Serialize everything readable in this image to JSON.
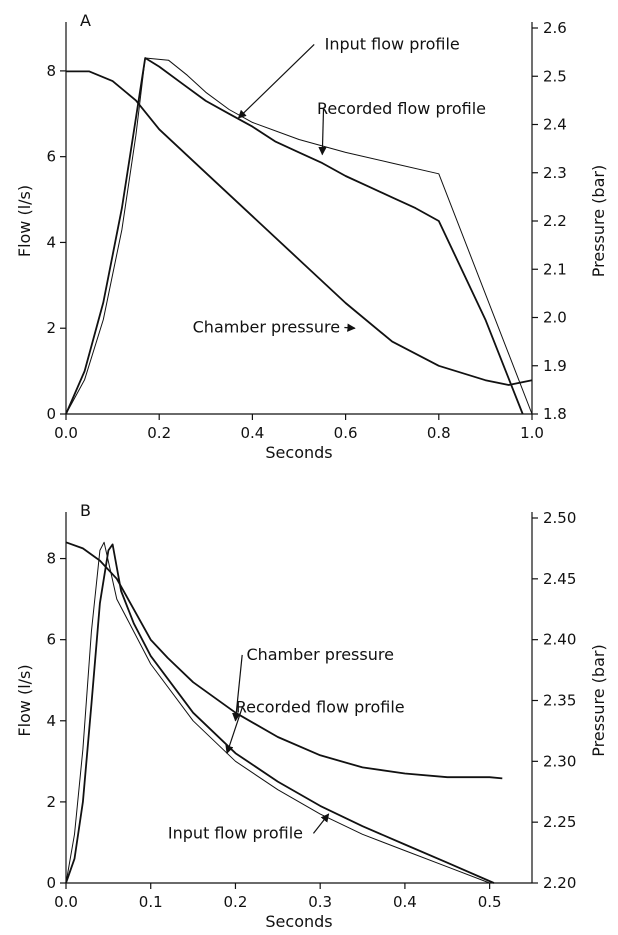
{
  "chart_data": [
    {
      "panel": "A",
      "type": "line",
      "xlabel": "Seconds",
      "ylabel": "Flow (l/s)",
      "y2label": "Pressure (bar)",
      "xlim": [
        0.0,
        1.0
      ],
      "ylim": [
        0,
        9
      ],
      "y2lim": [
        1.8,
        2.6
      ],
      "xticks": [
        "0.0",
        "0.2",
        "0.4",
        "0.6",
        "0.8",
        "1.0"
      ],
      "yticks": [
        "0",
        "2",
        "4",
        "6",
        "8"
      ],
      "y2ticks": [
        "1.8",
        "1.9",
        "2.0",
        "2.1",
        "2.2",
        "2.3",
        "2.4",
        "2.5",
        "2.6"
      ],
      "series": [
        {
          "name": "Input flow profile",
          "axis": "left",
          "stroke": 1.0,
          "x": [
            0.0,
            0.04,
            0.08,
            0.12,
            0.15,
            0.17,
            0.22,
            0.26,
            0.3,
            0.35,
            0.4,
            0.5,
            0.6,
            0.7,
            0.8,
            1.0
          ],
          "y": [
            0.0,
            0.8,
            2.2,
            4.3,
            6.5,
            8.3,
            8.25,
            7.9,
            7.5,
            7.1,
            6.8,
            6.4,
            6.1,
            5.85,
            5.6,
            0.0
          ]
        },
        {
          "name": "Recorded flow profile",
          "axis": "left",
          "stroke": 1.8,
          "x": [
            0.0,
            0.04,
            0.08,
            0.12,
            0.15,
            0.17,
            0.2,
            0.25,
            0.3,
            0.35,
            0.4,
            0.45,
            0.5,
            0.55,
            0.6,
            0.65,
            0.7,
            0.75,
            0.8,
            0.9,
            0.98
          ],
          "y": [
            0.0,
            1.0,
            2.6,
            4.8,
            6.9,
            8.3,
            8.1,
            7.7,
            7.3,
            7.0,
            6.7,
            6.35,
            6.1,
            5.85,
            5.55,
            5.3,
            5.05,
            4.8,
            4.5,
            2.2,
            0.0
          ]
        },
        {
          "name": "Chamber pressure",
          "axis": "right",
          "stroke": 1.8,
          "x": [
            0.0,
            0.05,
            0.1,
            0.15,
            0.2,
            0.3,
            0.4,
            0.5,
            0.6,
            0.7,
            0.8,
            0.9,
            0.95,
            1.0
          ],
          "y": [
            2.51,
            2.51,
            2.49,
            2.45,
            2.39,
            2.3,
            2.21,
            2.12,
            2.03,
            1.95,
            1.9,
            1.87,
            1.86,
            1.87
          ]
        }
      ],
      "annotations": [
        {
          "text": "Input flow profile",
          "series": "Input flow profile",
          "tx": 0.7,
          "ty": 8.5,
          "ax": 0.37,
          "ay": 6.9
        },
        {
          "text": "Recorded flow profile",
          "series": "Recorded flow profile",
          "tx": 0.72,
          "ty": 7.0,
          "ax": 0.55,
          "ay": 6.05
        },
        {
          "text": "Chamber pressure",
          "series": "Chamber pressure",
          "tx": 0.43,
          "ty": 1.9,
          "ax": 0.62,
          "ay": 2.0
        }
      ]
    },
    {
      "panel": "B",
      "type": "line",
      "xlabel": "Seconds",
      "ylabel": "Flow (l/s)",
      "y2label": "Pressure (bar)",
      "xlim": [
        0.0,
        0.55
      ],
      "ylim": [
        0,
        9
      ],
      "y2lim": [
        2.2,
        2.5
      ],
      "xticks": [
        "0.0",
        "0.1",
        "0.2",
        "0.3",
        "0.4",
        "0.5"
      ],
      "yticks": [
        "0",
        "2",
        "4",
        "6",
        "8"
      ],
      "y2ticks": [
        "2.20",
        "2.25",
        "2.30",
        "2.35",
        "2.40",
        "2.45",
        "2.50"
      ],
      "series": [
        {
          "name": "Input flow profile",
          "axis": "left",
          "stroke": 1.0,
          "x": [
            0.0,
            0.01,
            0.02,
            0.03,
            0.04,
            0.045,
            0.06,
            0.08,
            0.1,
            0.15,
            0.2,
            0.25,
            0.3,
            0.35,
            0.4,
            0.45,
            0.5
          ],
          "y": [
            0.0,
            1.2,
            3.3,
            6.2,
            8.2,
            8.4,
            7.0,
            6.2,
            5.4,
            4.0,
            3.0,
            2.3,
            1.7,
            1.2,
            0.8,
            0.4,
            0.0
          ]
        },
        {
          "name": "Recorded flow profile",
          "axis": "left",
          "stroke": 1.8,
          "x": [
            0.0,
            0.01,
            0.02,
            0.03,
            0.04,
            0.05,
            0.055,
            0.065,
            0.08,
            0.1,
            0.15,
            0.2,
            0.25,
            0.3,
            0.35,
            0.4,
            0.45,
            0.505
          ],
          "y": [
            0.0,
            0.6,
            2.0,
            4.4,
            6.9,
            8.2,
            8.35,
            7.2,
            6.4,
            5.6,
            4.2,
            3.2,
            2.5,
            1.9,
            1.4,
            0.95,
            0.5,
            0.0
          ]
        },
        {
          "name": "Chamber pressure",
          "axis": "right",
          "stroke": 1.8,
          "x": [
            0.0,
            0.02,
            0.04,
            0.06,
            0.08,
            0.1,
            0.12,
            0.15,
            0.2,
            0.25,
            0.3,
            0.35,
            0.4,
            0.45,
            0.5,
            0.515
          ],
          "y": [
            2.48,
            2.475,
            2.465,
            2.45,
            2.425,
            2.4,
            2.385,
            2.365,
            2.34,
            2.32,
            2.305,
            2.295,
            2.29,
            2.287,
            2.287,
            2.286
          ]
        }
      ],
      "annotations": [
        {
          "text": "Chamber pressure",
          "series": "Chamber pressure",
          "tx": 0.3,
          "ty": 5.5,
          "ax": 0.2,
          "ay": 4.0
        },
        {
          "text": "Recorded flow profile",
          "series": "Recorded flow profile",
          "tx": 0.3,
          "ty": 4.2,
          "ax": 0.19,
          "ay": 3.2
        },
        {
          "text": "Input flow profile",
          "series": "Input flow profile",
          "tx": 0.2,
          "ty": 1.1,
          "ax": 0.31,
          "ay": 1.7
        }
      ]
    }
  ]
}
